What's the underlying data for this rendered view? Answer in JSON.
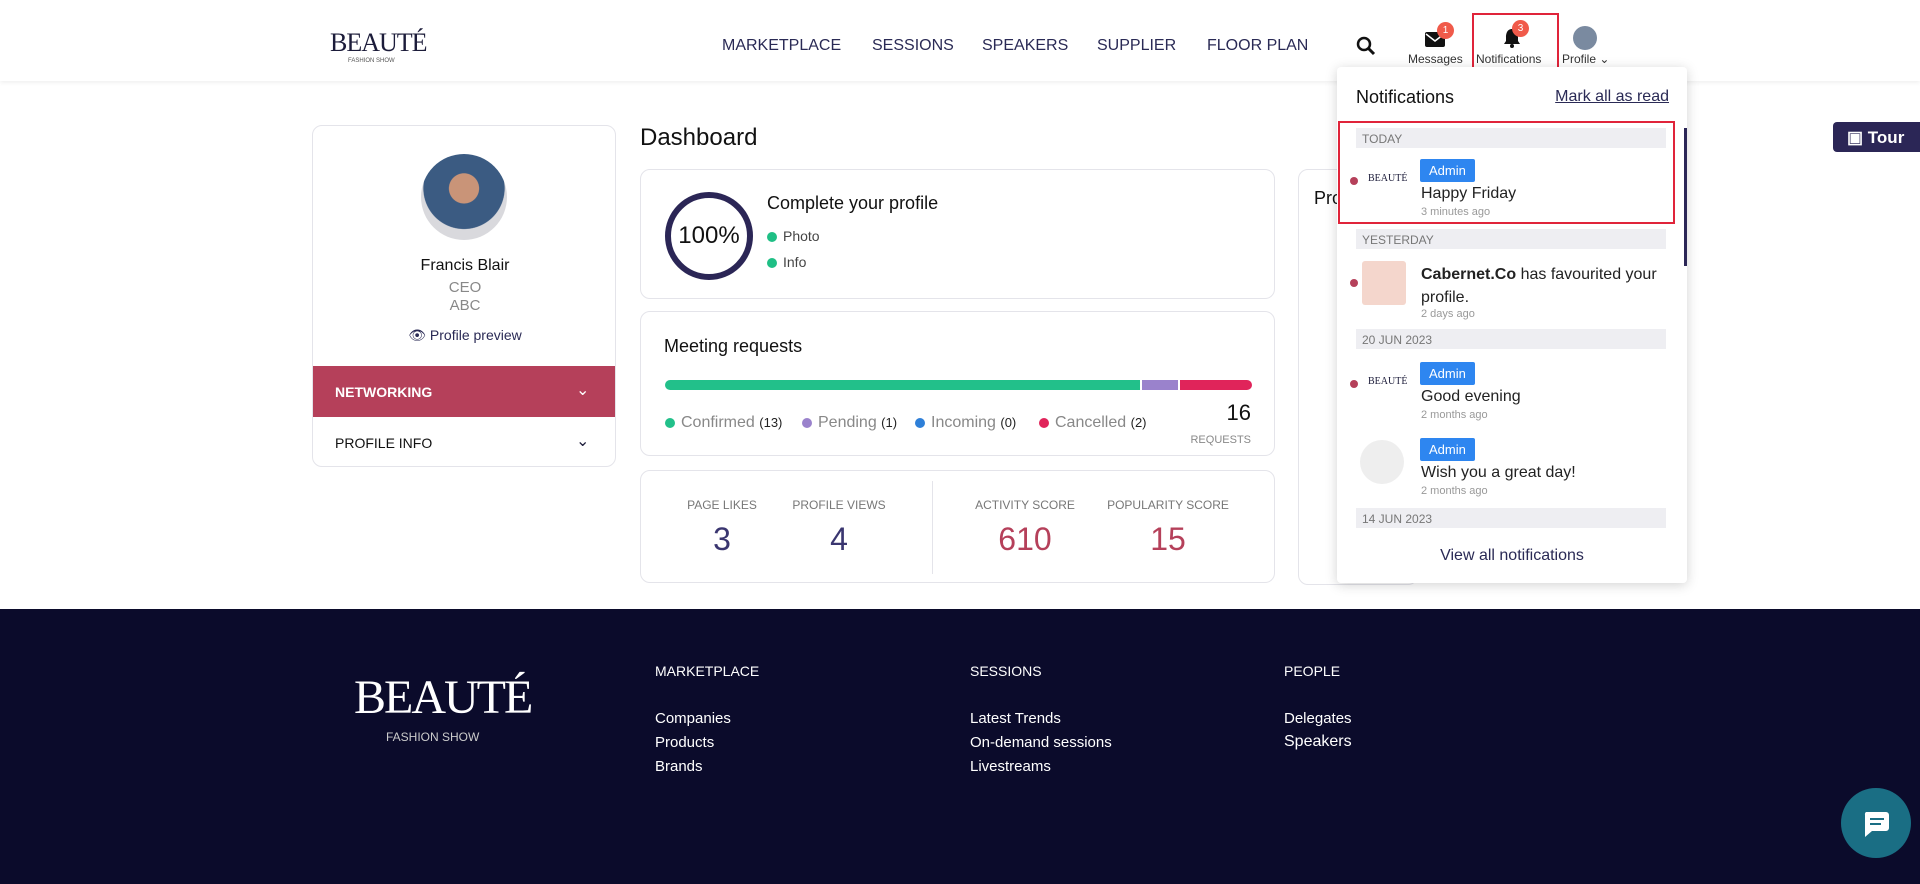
{
  "header": {
    "logo": "BEAUTÉ",
    "logo_sub": "FASHION SHOW",
    "nav": [
      "MARKETPLACE",
      "SESSIONS",
      "SPEAKERS",
      "SUPPLIER",
      "FLOOR PLAN"
    ],
    "messages": {
      "label": "Messages",
      "badge": "1"
    },
    "notifications": {
      "label": "Notifications",
      "badge": "3"
    },
    "profile": "Profile"
  },
  "profile_card": {
    "name": "Francis Blair",
    "role": "CEO",
    "company": "ABC",
    "preview": "Profile preview",
    "menu": [
      "NETWORKING",
      "PROFILE INFO"
    ]
  },
  "dashboard": {
    "title": "Dashboard",
    "completion": {
      "percent": "100%",
      "heading": "Complete your profile",
      "items": [
        "Photo",
        "Info"
      ]
    },
    "meetings": {
      "title": "Meeting requests",
      "legend": [
        {
          "name": "Confirmed",
          "count": "(13)"
        },
        {
          "name": "Pending",
          "count": "(1)"
        },
        {
          "name": "Incoming",
          "count": "(0)"
        },
        {
          "name": "Cancelled",
          "count": "(2)"
        }
      ],
      "total": "16",
      "total_label": "REQUESTS"
    },
    "stats": [
      {
        "label": "PAGE LIKES",
        "value": "3"
      },
      {
        "label": "PROFILE VIEWS",
        "value": "4"
      },
      {
        "label": "ACTIVITY SCORE",
        "value": "610"
      },
      {
        "label": "POPULARITY SCORE",
        "value": "15"
      }
    ],
    "side_card": "Pro"
  },
  "tour": "Tour",
  "notifications_panel": {
    "title": "Notifications",
    "mark_all": "Mark all as read",
    "groups": [
      {
        "date": "TODAY",
        "items": [
          {
            "tag": "Admin",
            "text": "Happy Friday",
            "time": "3 minutes ago"
          }
        ]
      },
      {
        "date": "YESTERDAY",
        "items": [
          {
            "sender": "Cabernet.Co",
            "text": "has favourited your profile.",
            "time": "2 days ago"
          }
        ]
      },
      {
        "date": "20 JUN 2023",
        "items": [
          {
            "tag": "Admin",
            "text": "Good evening",
            "time": "2 months ago"
          },
          {
            "tag": "Admin",
            "text": "Wish you a great day!",
            "time": "2 months ago"
          }
        ]
      },
      {
        "date": "14 JUN 2023",
        "items": []
      }
    ],
    "view_all": "View all notifications"
  },
  "footer": {
    "logo": "BEAUTÉ",
    "logo_sub": "FASHION SHOW",
    "columns": [
      {
        "heading": "MARKETPLACE",
        "links": [
          "Companies",
          "Products",
          "Brands"
        ]
      },
      {
        "heading": "SESSIONS",
        "links": [
          "Latest Trends",
          "On-demand sessions",
          "Livestreams"
        ]
      },
      {
        "heading": "PEOPLE",
        "links": [
          "Delegates",
          "Speakers"
        ]
      }
    ]
  }
}
